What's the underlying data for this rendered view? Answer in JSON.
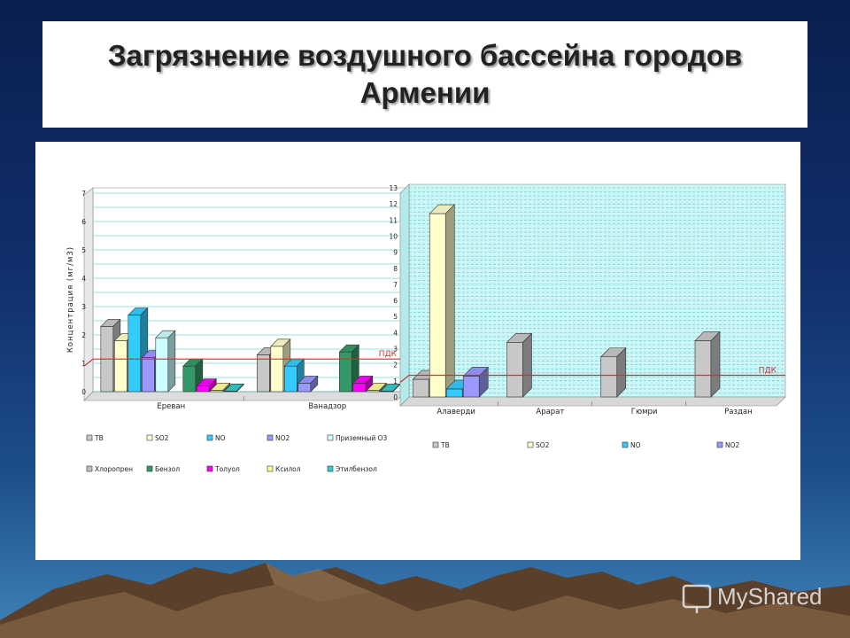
{
  "slide": {
    "title": "Загрязнение воздушного бассейна городов Армении",
    "watermark": "MyShared"
  },
  "colors": {
    "ТВ": "#c8c8c8",
    "SO2": "#ffffcc",
    "NO": "#33ccff",
    "NO2": "#9999ff",
    "Приземный О3": "#ccffff",
    "Хлоропрен": "#c0c0c0",
    "Бензол": "#339966",
    "Толуол": "#ff00ff",
    "Ксилол": "#ffff99",
    "Этилбензол": "#33cccc",
    "pdk_line": "#cc3333"
  },
  "chart_data": [
    {
      "type": "bar",
      "categories": [
        "Ереван",
        "Ванадзор"
      ],
      "series": [
        {
          "name": "ТВ",
          "values": [
            2.3,
            1.3
          ]
        },
        {
          "name": "SO2",
          "values": [
            1.8,
            1.6
          ]
        },
        {
          "name": "NO",
          "values": [
            2.7,
            0.9
          ]
        },
        {
          "name": "NO2",
          "values": [
            1.2,
            0.3
          ]
        },
        {
          "name": "Приземный О3",
          "values": [
            1.9,
            0
          ]
        },
        {
          "name": "Хлоропрен",
          "values": [
            0,
            0
          ]
        },
        {
          "name": "Бензол",
          "values": [
            0.9,
            1.4
          ]
        },
        {
          "name": "Толуол",
          "values": [
            0.2,
            0.3
          ]
        },
        {
          "name": "Ксилол",
          "values": [
            0.05,
            0.05
          ]
        },
        {
          "name": "Этилбензол",
          "values": [
            0.02,
            0.02
          ]
        }
      ],
      "ylabel": "Концентрация (мг/м3)",
      "yticks": [
        "0",
        "1",
        "2",
        "3",
        "4",
        "5",
        "6",
        "7"
      ],
      "ylim": [
        0,
        7
      ],
      "reference_line": {
        "value": 1.15,
        "label": "ПДК"
      },
      "grid": true,
      "legend": "bottom"
    },
    {
      "type": "bar",
      "categories": [
        "Алаверди",
        "Арарат",
        "Гюмри",
        "Раздан"
      ],
      "series": [
        {
          "name": "ТВ",
          "values": [
            1.1,
            3.4,
            2.5,
            3.5
          ]
        },
        {
          "name": "SO2",
          "values": [
            11.4,
            0,
            0,
            0
          ]
        },
        {
          "name": "NO",
          "values": [
            0.5,
            0,
            0,
            0
          ]
        },
        {
          "name": "NO2",
          "values": [
            1.3,
            0,
            0,
            0
          ]
        }
      ],
      "yticks": [
        "0",
        "1",
        "2",
        "3",
        "4",
        "5",
        "6",
        "7",
        "8",
        "9",
        "10",
        "11",
        "12",
        "13"
      ],
      "ylim": [
        0,
        13
      ],
      "reference_line": {
        "value": 1.35,
        "label": "ПДК"
      },
      "grid": true,
      "legend": "bottom"
    }
  ]
}
